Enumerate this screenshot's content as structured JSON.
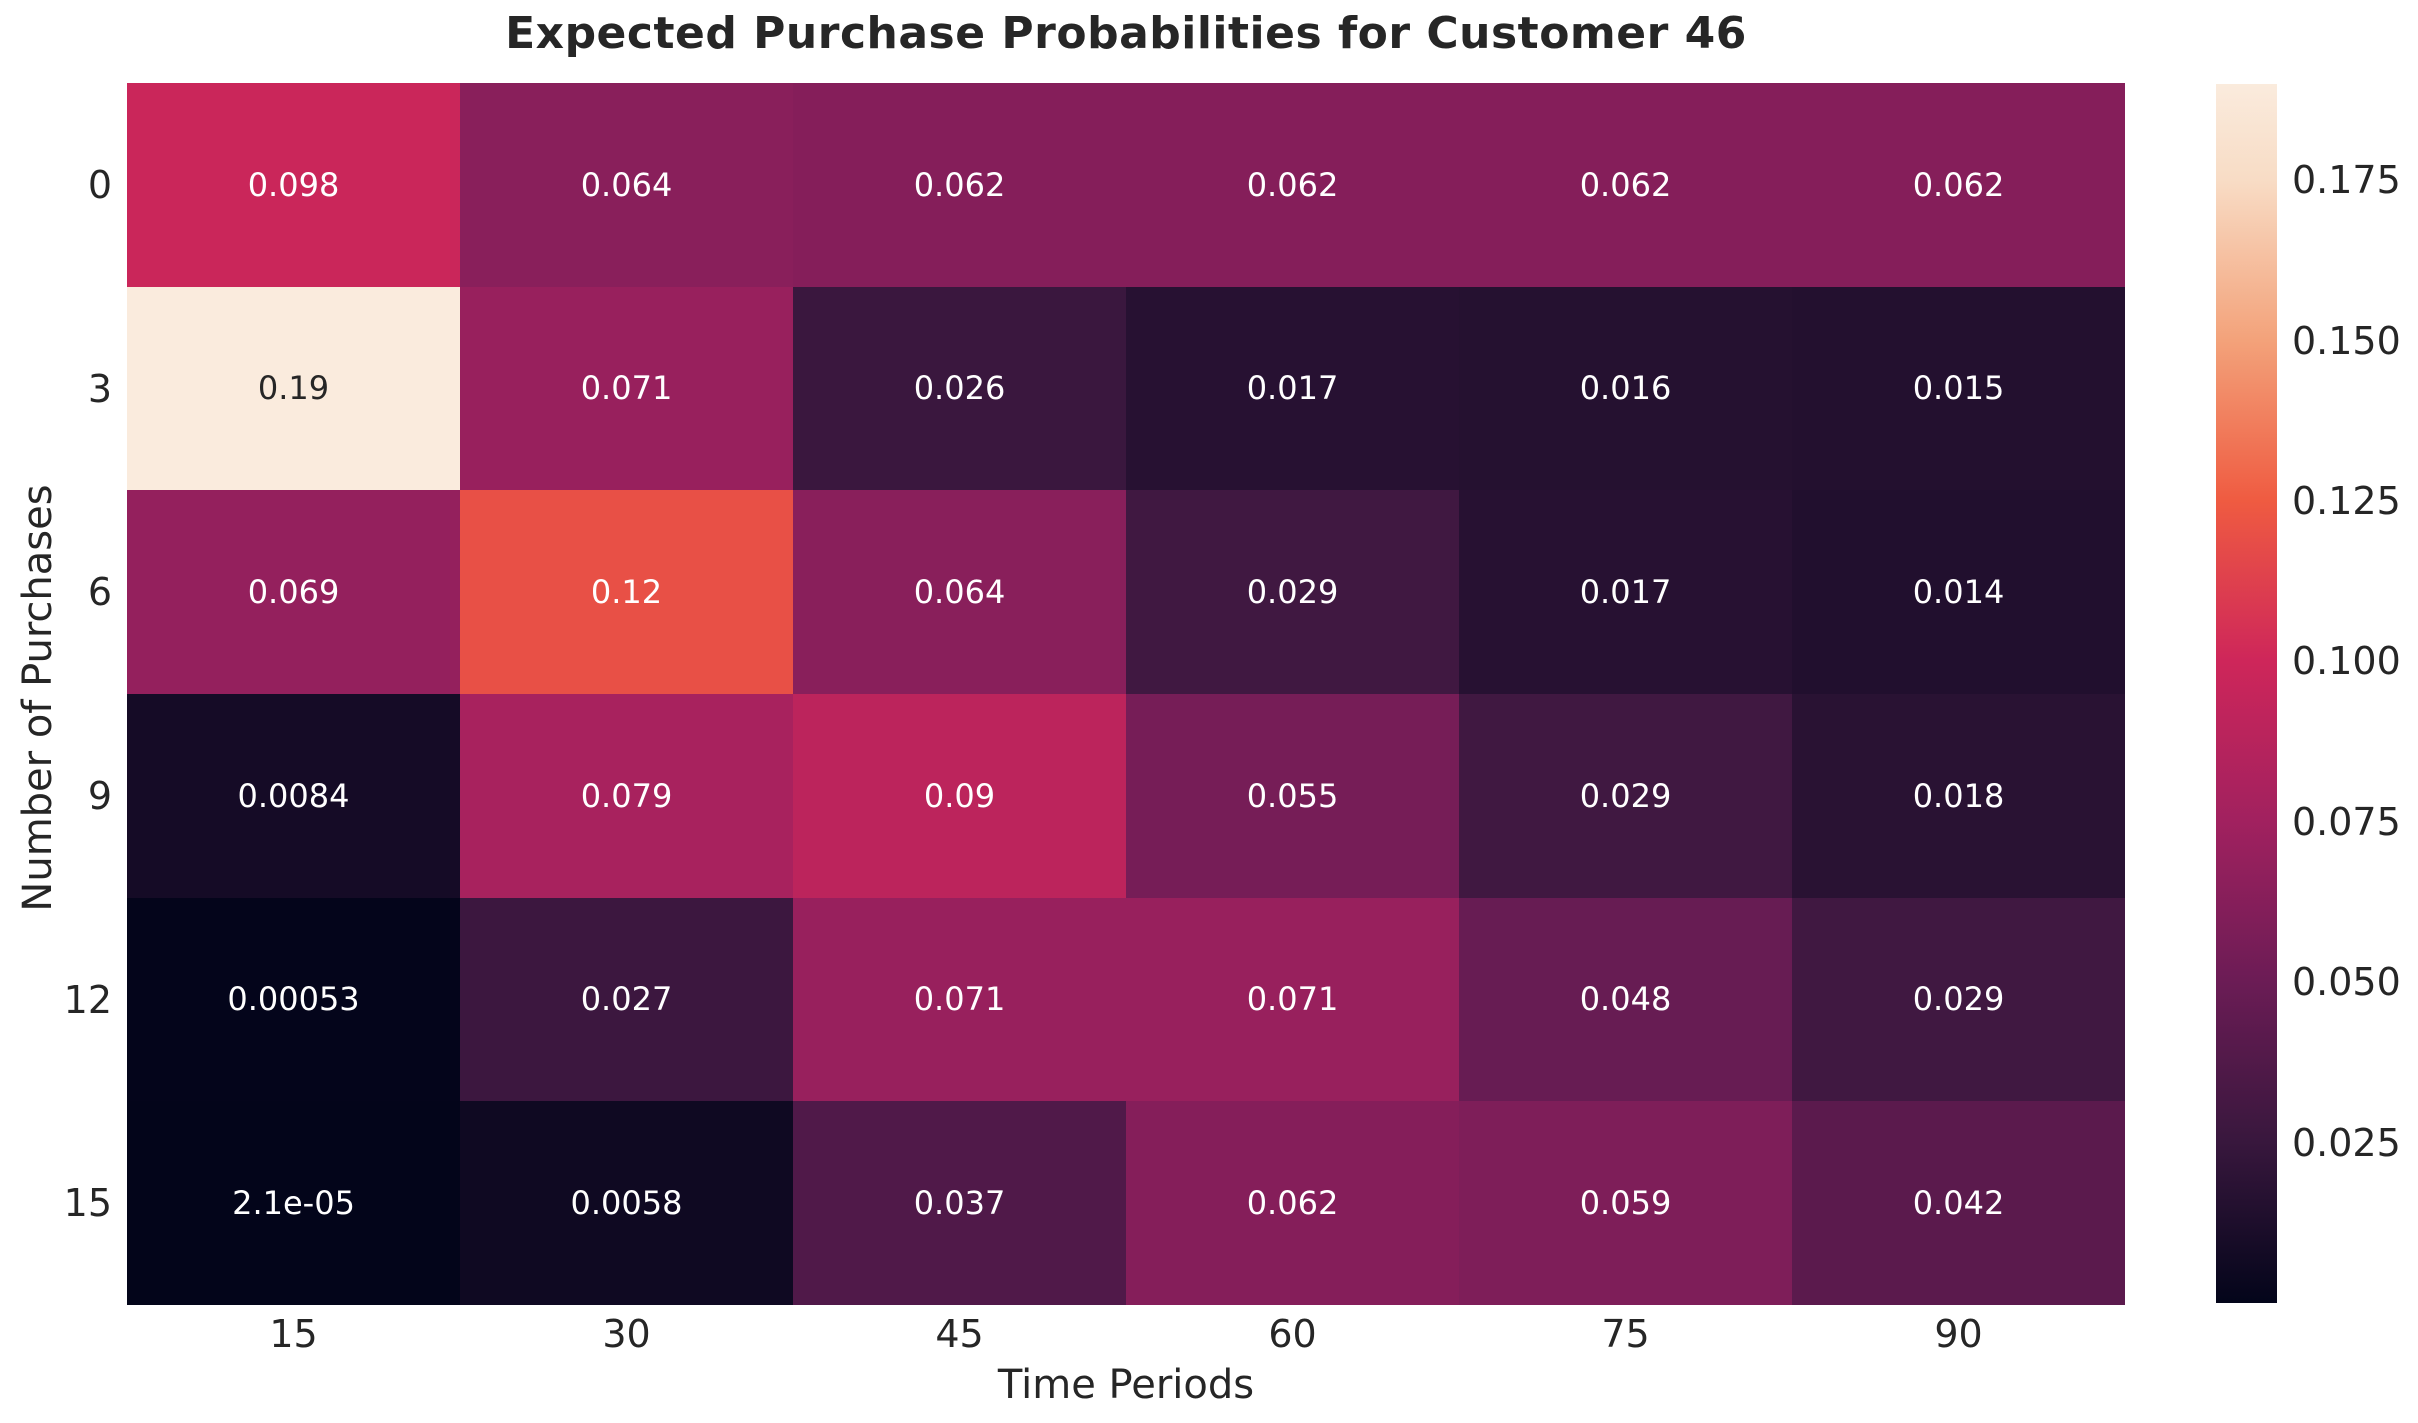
{
  "chart_data": {
    "type": "heatmap",
    "title": "Expected Purchase Probabilities for Customer 46",
    "xlabel": "Time Periods",
    "ylabel": "Number of Purchases",
    "x_categories": [
      "15",
      "30",
      "45",
      "60",
      "75",
      "90"
    ],
    "y_categories": [
      "0",
      "3",
      "6",
      "9",
      "12",
      "15"
    ],
    "values": [
      [
        0.098,
        0.064,
        0.062,
        0.062,
        0.062,
        0.062
      ],
      [
        0.19,
        0.071,
        0.026,
        0.017,
        0.016,
        0.015
      ],
      [
        0.069,
        0.12,
        0.064,
        0.029,
        0.017,
        0.014
      ],
      [
        0.0084,
        0.079,
        0.09,
        0.055,
        0.029,
        0.018
      ],
      [
        0.00053,
        0.027,
        0.071,
        0.071,
        0.048,
        0.029
      ],
      [
        2.1e-05,
        0.0058,
        0.037,
        0.062,
        0.059,
        0.042
      ]
    ],
    "cell_labels": [
      [
        "0.098",
        "0.064",
        "0.062",
        "0.062",
        "0.062",
        "0.062"
      ],
      [
        "0.19",
        "0.071",
        "0.026",
        "0.017",
        "0.016",
        "0.015"
      ],
      [
        "0.069",
        "0.12",
        "0.064",
        "0.029",
        "0.017",
        "0.014"
      ],
      [
        "0.0084",
        "0.079",
        "0.09",
        "0.055",
        "0.029",
        "0.018"
      ],
      [
        "0.00053",
        "0.027",
        "0.071",
        "0.071",
        "0.048",
        "0.029"
      ],
      [
        "2.1e-05",
        "0.0058",
        "0.037",
        "0.062",
        "0.059",
        "0.042"
      ]
    ],
    "vmin": 0.0,
    "vmax": 0.19,
    "colormap": "rocket",
    "colormap_stops": [
      {
        "value": 0.0,
        "color": "#03051A"
      },
      {
        "value": 0.025,
        "color": "#38173D"
      },
      {
        "value": 0.05,
        "color": "#6B1C55"
      },
      {
        "value": 0.075,
        "color": "#A1215F"
      },
      {
        "value": 0.1,
        "color": "#CE265A"
      },
      {
        "value": 0.125,
        "color": "#EF5B41"
      },
      {
        "value": 0.15,
        "color": "#F3A27A"
      },
      {
        "value": 0.175,
        "color": "#F8DCC5"
      },
      {
        "value": 0.19,
        "color": "#FAEBDD"
      }
    ],
    "colorbar_ticks": [
      "0.175",
      "0.150",
      "0.125",
      "0.100",
      "0.075",
      "0.050",
      "0.025"
    ],
    "colorbar_tick_values": [
      0.175,
      0.15,
      0.125,
      0.1,
      0.075,
      0.05,
      0.025
    ],
    "colorbar_position": "right",
    "grid": false,
    "annotation_text_colors": {
      "on_dark": "#ffffff",
      "on_light": "#262626"
    },
    "text_color": "#262626"
  }
}
